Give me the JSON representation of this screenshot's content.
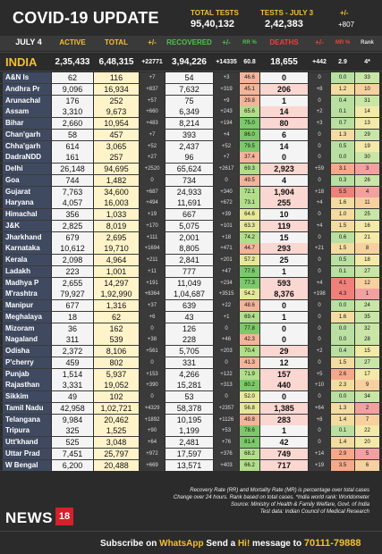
{
  "header": {
    "title": "COVID-19 UPDATE",
    "total_tests_label": "TOTAL TESTS",
    "total_tests_value": "95,40,132",
    "tests_day_label": "TESTS - JULY 3",
    "tests_day_value": "2,42,383",
    "tests_change_label": "+/-",
    "tests_change_value": "+807"
  },
  "columns": {
    "date": "JULY 4",
    "active": "ACTIVE",
    "total": "TOTAL",
    "total_change": "+/-",
    "recovered": "RECOVERED",
    "recovered_change": "+/-",
    "rr": "RR %",
    "deaths": "DEATHS",
    "deaths_change": "+/-",
    "mr": "MR %",
    "rank": "Rank"
  },
  "india": {
    "name": "INDIA",
    "active": "2,35,433",
    "total": "6,48,315",
    "total_change": "+22771",
    "recovered": "3,94,226",
    "recovered_change": "+14335",
    "rr": "60.8",
    "deaths": "18,655",
    "deaths_change": "+442",
    "mr": "2.9",
    "rank": "4*"
  },
  "states": [
    {
      "name": "A&N Is",
      "active": "62",
      "total": "116",
      "tc": "+7",
      "rec": "54",
      "rc": "+3",
      "rr": "46.6",
      "deaths": "0",
      "dc": "0",
      "mr": "0.0",
      "rank": "33"
    },
    {
      "name": "Andhra Pr",
      "active": "9,096",
      "total": "16,934",
      "tc": "+837",
      "rec": "7,632",
      "rc": "+319",
      "rr": "45.1",
      "deaths": "206",
      "dc": "+8",
      "mr": "1.2",
      "rank": "10"
    },
    {
      "name": "Arunachal",
      "active": "176",
      "total": "252",
      "tc": "+57",
      "rec": "75",
      "rc": "+9",
      "rr": "29.8",
      "deaths": "1",
      "dc": "0",
      "mr": "0.4",
      "rank": "31"
    },
    {
      "name": "Assam",
      "active": "3,310",
      "total": "9,673",
      "tc": "+660",
      "rec": "6,349",
      "rc": "+243",
      "rr": "65.6",
      "deaths": "14",
      "dc": "+2",
      "mr": "0.1",
      "rank": "14"
    },
    {
      "name": "Bihar",
      "active": "2,660",
      "total": "10,954",
      "tc": "+483",
      "rec": "8,214",
      "rc": "+194",
      "rr": "75.0",
      "deaths": "80",
      "dc": "+3",
      "mr": "0.7",
      "rank": "13"
    },
    {
      "name": "Chan'garh",
      "active": "58",
      "total": "457",
      "tc": "+7",
      "rec": "393",
      "rc": "+4",
      "rr": "86.0",
      "deaths": "6",
      "dc": "0",
      "mr": "1.3",
      "rank": "29"
    },
    {
      "name": "Chha'garh",
      "active": "614",
      "total": "3,065",
      "tc": "+52",
      "rec": "2,437",
      "rc": "+52",
      "rr": "79.5",
      "deaths": "14",
      "dc": "0",
      "mr": "0.5",
      "rank": "19"
    },
    {
      "name": "DadraNDD",
      "active": "161",
      "total": "257",
      "tc": "+27",
      "rec": "96",
      "rc": "+7",
      "rr": "37.4",
      "deaths": "0",
      "dc": "0",
      "mr": "0.0",
      "rank": "30"
    },
    {
      "name": "Delhi",
      "active": "26,148",
      "total": "94,695",
      "tc": "+2520",
      "rec": "65,624",
      "rc": "+2617",
      "rr": "69.3",
      "deaths": "2,923",
      "dc": "+59",
      "mr": "3.1",
      "rank": "3"
    },
    {
      "name": "Goa",
      "active": "744",
      "total": "1,482",
      "tc": "0",
      "rec": "734",
      "rc": "0",
      "rr": "49.5",
      "deaths": "4",
      "dc": "0",
      "mr": "0.3",
      "rank": "26"
    },
    {
      "name": "Gujarat",
      "active": "7,763",
      "total": "34,600",
      "tc": "+687",
      "rec": "24,933",
      "rc": "+340",
      "rr": "72.1",
      "deaths": "1,904",
      "dc": "+18",
      "mr": "5.5",
      "rank": "4"
    },
    {
      "name": "Haryana",
      "active": "4,057",
      "total": "16,003",
      "tc": "+494",
      "rec": "11,691",
      "rc": "+672",
      "rr": "73.1",
      "deaths": "255",
      "dc": "+4",
      "mr": "1.6",
      "rank": "11"
    },
    {
      "name": "Himachal",
      "active": "356",
      "total": "1,033",
      "tc": "+19",
      "rec": "667",
      "rc": "+39",
      "rr": "64.6",
      "deaths": "10",
      "dc": "0",
      "mr": "1.0",
      "rank": "25"
    },
    {
      "name": "J&K",
      "active": "2,825",
      "total": "8,019",
      "tc": "+170",
      "rec": "5,075",
      "rc": "+101",
      "rr": "63.3",
      "deaths": "119",
      "dc": "+4",
      "mr": "1.5",
      "rank": "16"
    },
    {
      "name": "Jharkhand",
      "active": "679",
      "total": "2,695",
      "tc": "+111",
      "rec": "2,001",
      "rc": "+18",
      "rr": "74.2",
      "deaths": "15",
      "dc": "0",
      "mr": "0.6",
      "rank": "21"
    },
    {
      "name": "Karnataka",
      "active": "10,612",
      "total": "19,710",
      "tc": "+1694",
      "rec": "8,805",
      "rc": "+471",
      "rr": "44.7",
      "deaths": "293",
      "dc": "+21",
      "mr": "1.5",
      "rank": "8"
    },
    {
      "name": "Kerala",
      "active": "2,098",
      "total": "4,964",
      "tc": "+211",
      "rec": "2,841",
      "rc": "+201",
      "rr": "57.2",
      "deaths": "25",
      "dc": "0",
      "mr": "0.5",
      "rank": "18"
    },
    {
      "name": "Ladakh",
      "active": "223",
      "total": "1,001",
      "tc": "+11",
      "rec": "777",
      "rc": "+47",
      "rr": "77.6",
      "deaths": "1",
      "dc": "0",
      "mr": "0.1",
      "rank": "27"
    },
    {
      "name": "Madhya P",
      "active": "2,655",
      "total": "14,297",
      "tc": "+191",
      "rec": "11,049",
      "rc": "+234",
      "rr": "77.3",
      "deaths": "593",
      "dc": "+4",
      "mr": "4.1",
      "rank": "12"
    },
    {
      "name": "M'rashtra",
      "active": "79,927",
      "total": "1,92,990",
      "tc": "+6364",
      "rec": "1,04,687",
      "rc": "+3515",
      "rr": "54.2",
      "deaths": "8,376",
      "dc": "+198",
      "mr": "4.3",
      "rank": "1"
    },
    {
      "name": "Manipur",
      "active": "677",
      "total": "1,316",
      "tc": "+37",
      "rec": "639",
      "rc": "+22",
      "rr": "48.6",
      "deaths": "0",
      "dc": "0",
      "mr": "0.0",
      "rank": "24"
    },
    {
      "name": "Meghalaya",
      "active": "18",
      "total": "62",
      "tc": "+6",
      "rec": "43",
      "rc": "+1",
      "rr": "69.4",
      "deaths": "1",
      "dc": "0",
      "mr": "1.6",
      "rank": "35"
    },
    {
      "name": "Mizoram",
      "active": "36",
      "total": "162",
      "tc": "0",
      "rec": "126",
      "rc": "0",
      "rr": "77.8",
      "deaths": "0",
      "dc": "0",
      "mr": "0.0",
      "rank": "32"
    },
    {
      "name": "Nagaland",
      "active": "311",
      "total": "539",
      "tc": "+38",
      "rec": "228",
      "rc": "+46",
      "rr": "42.3",
      "deaths": "0",
      "dc": "0",
      "mr": "0.0",
      "rank": "28"
    },
    {
      "name": "Odisha",
      "active": "2,372",
      "total": "8,106",
      "tc": "+561",
      "rec": "5,705",
      "rc": "+203",
      "rr": "70.4",
      "deaths": "29",
      "dc": "+2",
      "mr": "0.4",
      "rank": "15"
    },
    {
      "name": "P'cherry",
      "active": "459",
      "total": "802",
      "tc": "0",
      "rec": "331",
      "rc": "0",
      "rr": "41.3",
      "deaths": "12",
      "dc": "0",
      "mr": "1.5",
      "rank": "27"
    },
    {
      "name": "Punjab",
      "active": "1,514",
      "total": "5,937",
      "tc": "+153",
      "rec": "4,266",
      "rc": "+122",
      "rr": "71.9",
      "deaths": "157",
      "dc": "+5",
      "mr": "2.6",
      "rank": "17"
    },
    {
      "name": "Rajasthan",
      "active": "3,331",
      "total": "19,052",
      "tc": "+390",
      "rec": "15,281",
      "rc": "+313",
      "rr": "80.2",
      "deaths": "440",
      "dc": "+10",
      "mr": "2.3",
      "rank": "9"
    },
    {
      "name": "Sikkim",
      "active": "49",
      "total": "102",
      "tc": "0",
      "rec": "53",
      "rc": "0",
      "rr": "52.0",
      "deaths": "0",
      "dc": "0",
      "mr": "0.0",
      "rank": "34"
    },
    {
      "name": "Tamil Nadu",
      "active": "42,958",
      "total": "1,02,721",
      "tc": "+4329",
      "rec": "58,378",
      "rc": "+2357",
      "rr": "56.8",
      "deaths": "1,385",
      "dc": "+64",
      "mr": "1.3",
      "rank": "2"
    },
    {
      "name": "Telangana",
      "active": "9,984",
      "total": "20,462",
      "tc": "+1892",
      "rec": "10,195",
      "rc": "+1126",
      "rr": "49.8",
      "deaths": "283",
      "dc": "+8",
      "mr": "1.4",
      "rank": "7"
    },
    {
      "name": "Tripura",
      "active": "325",
      "total": "1,525",
      "tc": "+90",
      "rec": "1,199",
      "rc": "+53",
      "rr": "78.6",
      "deaths": "1",
      "dc": "0",
      "mr": "0.1",
      "rank": "22"
    },
    {
      "name": "Utt'khand",
      "active": "525",
      "total": "3,048",
      "tc": "+64",
      "rec": "2,481",
      "rc": "+76",
      "rr": "81.4",
      "deaths": "42",
      "dc": "0",
      "mr": "1.4",
      "rank": "20"
    },
    {
      "name": "Uttar Prad",
      "active": "7,451",
      "total": "25,797",
      "tc": "+972",
      "rec": "17,597",
      "rc": "+376",
      "rr": "68.2",
      "deaths": "749",
      "dc": "+14",
      "mr": "2.9",
      "rank": "5"
    },
    {
      "name": "W Bengal",
      "active": "6,200",
      "total": "20,488",
      "tc": "+669",
      "rec": "13,571",
      "rc": "+403",
      "rr": "66.2",
      "deaths": "717",
      "dc": "+19",
      "mr": "3.5",
      "rank": "6"
    }
  ],
  "notes": {
    "line1": "Recovery Rate (RR) and Mortality Rate (MR) is percentage over total cases",
    "line2": "Change over 24 hours. Rank based on total cases. *India world rank: Worldometer",
    "line3": "Source: Ministry of Health & Family Welfare, Govt. of India",
    "line4": "Test data: Indian Council of Medical Research"
  },
  "brand": {
    "name": "NEWS",
    "number": "18"
  },
  "subscribe": {
    "prefix": "Subscribe on ",
    "app": "WhatsApp",
    "middle": " Send a ",
    "hi": "Hi!",
    "suffix": " message to ",
    "number": "70111-79888"
  },
  "colors": {
    "accent_yellow": "#f2c12e",
    "green_label": "#4cc34a",
    "red_label": "#e8433a"
  }
}
